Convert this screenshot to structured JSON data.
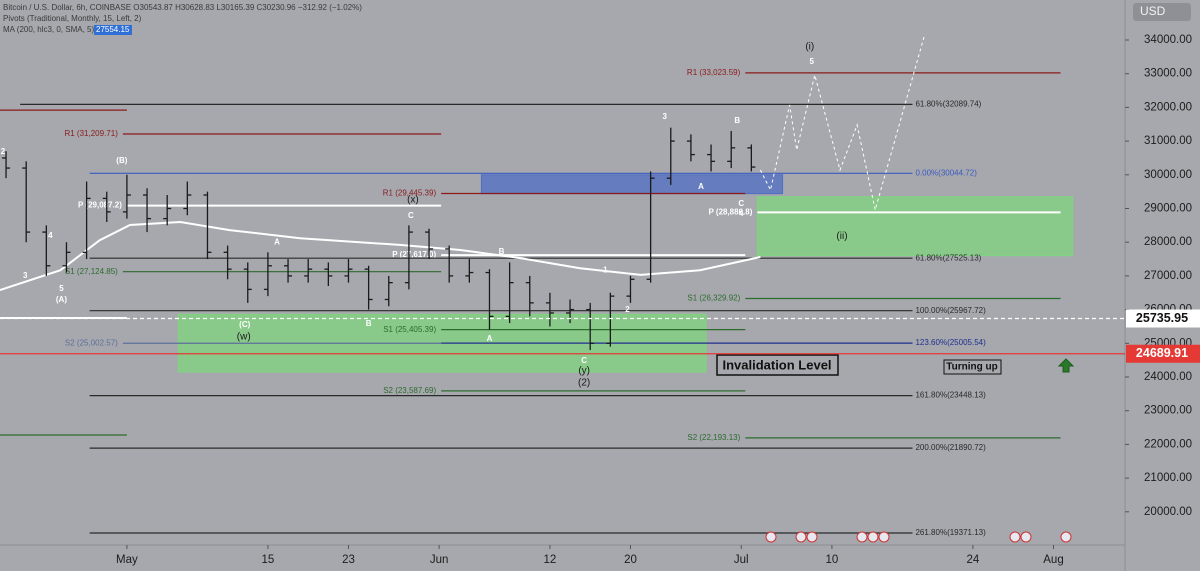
{
  "chart_data": {
    "type": "candlestick",
    "header": [
      "Bitcoin / U.S. Dollar, 6h, COINBASE  O30543.87 H30628.83 L30165.39 C30230.96 −312.92 (−1.02%)",
      "Pivots (Traditional, Monthly, 15, Left, 2)",
      "MA (200, hlc3, 0, SMA, 5)"
    ],
    "ma_value": 27554.15,
    "currency": "USD",
    "texts": [
      "Invalidation Level",
      "Turning up"
    ],
    "xlim": [
      -12.6,
      99.1
    ],
    "xticks": [
      {
        "value": 0,
        "label": "May"
      },
      {
        "value": 14,
        "label": "15"
      },
      {
        "value": 22,
        "label": "23"
      },
      {
        "value": 31,
        "label": "Jun"
      },
      {
        "value": 42,
        "label": "12"
      },
      {
        "value": 50,
        "label": "20"
      },
      {
        "value": 61,
        "label": "Jul"
      },
      {
        "value": 70,
        "label": "10"
      },
      {
        "value": 84,
        "label": "24"
      },
      {
        "value": 92,
        "label": "Aug"
      }
    ],
    "ylim": [
      19015,
      35187
    ],
    "yticks": [
      {
        "value": 20000,
        "label": "20000.00"
      },
      {
        "value": 21000,
        "label": "21000.00"
      },
      {
        "value": 22000,
        "label": "22000.00"
      },
      {
        "value": 23000,
        "label": "23000.00"
      },
      {
        "value": 24000,
        "label": "24000.00"
      },
      {
        "value": 25000,
        "label": "25000.00"
      },
      {
        "value": 26000,
        "label": "26000.00"
      },
      {
        "value": 27000,
        "label": "27000.00"
      },
      {
        "value": 28000,
        "label": "28000.00"
      },
      {
        "value": 29000,
        "label": "29000.00"
      },
      {
        "value": 30000,
        "label": "30000.00"
      },
      {
        "value": 31000,
        "label": "31000.00"
      },
      {
        "value": 32000,
        "label": "32000.00"
      },
      {
        "value": 33000,
        "label": "33000.00"
      },
      {
        "value": 34000,
        "label": "34000.00"
      }
    ],
    "color": "#1a1a1a",
    "x": [
      -12,
      -10,
      -8,
      -6,
      -4,
      -2,
      0,
      2,
      4,
      6,
      8,
      10,
      12,
      14,
      16,
      18,
      20,
      22,
      24,
      26,
      28,
      30,
      32,
      34,
      36,
      38,
      40,
      42,
      44,
      46,
      48,
      50,
      52,
      54,
      56,
      58,
      60,
      62
    ],
    "open": [
      30500,
      30200,
      28300,
      27300,
      27700,
      29300,
      28900,
      29400,
      28700,
      29000,
      29400,
      27700,
      27200,
      26600,
      27300,
      27000,
      27200,
      27000,
      27200,
      26300,
      26800,
      28300,
      27800,
      27000,
      27100,
      25800,
      26800,
      26200,
      25900,
      26000,
      25000,
      26400,
      26900,
      29900,
      31000,
      30600,
      30400,
      30800
    ],
    "high": [
      30700,
      30400,
      28500,
      28000,
      29800,
      29500,
      30000,
      29600,
      29400,
      29800,
      29500,
      27900,
      27400,
      27700,
      27500,
      27500,
      27400,
      27500,
      27300,
      27000,
      28500,
      28400,
      27900,
      27500,
      27200,
      27400,
      27000,
      26500,
      26300,
      26200,
      26500,
      27000,
      30100,
      31400,
      31200,
      30900,
      31300,
      30900
    ],
    "low": [
      29900,
      28000,
      27000,
      27100,
      27500,
      28600,
      28700,
      28300,
      28500,
      28800,
      27500,
      26900,
      26200,
      26400,
      26800,
      26800,
      26700,
      26800,
      26000,
      26100,
      26600,
      27500,
      26800,
      26800,
      25400,
      25600,
      25800,
      25500,
      25600,
      24800,
      24900,
      26200,
      26800,
      29700,
      30400,
      30100,
      30200,
      30100
    ],
    "close": [
      30200,
      28300,
      27300,
      27700,
      29300,
      28900,
      29400,
      28700,
      29000,
      29400,
      27700,
      27200,
      26600,
      27300,
      27000,
      27200,
      27000,
      27200,
      26300,
      26800,
      28300,
      27800,
      27000,
      27100,
      25800,
      26800,
      26200,
      25900,
      26000,
      25000,
      26400,
      26900,
      29900,
      31000,
      30600,
      30400,
      30800,
      30230
    ],
    "ma": {
      "color": "#ffffff",
      "x": [
        -12.6,
        -6.6,
        -2.7,
        0.3,
        5.3,
        10.2,
        17.2,
        27.1,
        33.1,
        39.0,
        45.0,
        51.0,
        56.9,
        62.9
      ],
      "values": [
        26580,
        27170,
        28060,
        28510,
        28600,
        28360,
        28120,
        27920,
        27770,
        27530,
        27230,
        27030,
        27170,
        27560
      ]
    },
    "projection": {
      "color": "#ffffff",
      "x": [
        62.9,
        63.9,
        65.8,
        66.5,
        68.3,
        70.8,
        72.5,
        74.3,
        79.2
      ],
      "values": [
        30140,
        29550,
        32070,
        30740,
        32960,
        30140,
        31480,
        28960,
        34150
      ]
    },
    "zones": [
      {
        "from": 35.2,
        "to": 65.1,
        "low": 29440,
        "high": 30000,
        "color": "#4f6fc4"
      },
      {
        "from": 5.1,
        "to": 57.5,
        "low": 24150,
        "high": 25860,
        "color": "#7fd67f"
      },
      {
        "from": 62.6,
        "to": 93.9,
        "low": 27600,
        "high": 29350,
        "color": "#7fd67f"
      }
    ],
    "levels": [
      {
        "value": 32089.74,
        "label": "61.80%(32089.74)",
        "from": -10.6,
        "to": 78,
        "color": "#2a2a2a"
      },
      {
        "value": 33023.59,
        "label": "R1 (33,023.59)",
        "from": 61.4,
        "to": 92.7,
        "color": "#8b1a1a"
      },
      {
        "value": 31209.71,
        "label": "R1 (31,209.71)",
        "from": -0.4,
        "to": 31.2,
        "color": "#8b1a1a"
      },
      {
        "value": 31920,
        "from": -12.6,
        "to": 0,
        "color": "#8b1a1a"
      },
      {
        "value": 29445.39,
        "label": "R1 (29,445.39)",
        "from": 31.2,
        "to": 61.4,
        "color": "#8b1a1a"
      },
      {
        "value": 30044.72,
        "label": "0.00%(30044.72)",
        "from": -3.7,
        "to": 78,
        "color": "#3b5bbf"
      },
      {
        "value": 29087.2,
        "label": "P (29,087.2)",
        "from": 0,
        "to": 31.2,
        "color": "#ffffff"
      },
      {
        "value": 28886.8,
        "label": "P (28,886.8)",
        "from": 62.6,
        "to": 92.7,
        "color": "#ffffff"
      },
      {
        "value": 27617.0,
        "label": "P (27,617.0)",
        "from": 31.2,
        "to": 61.4,
        "color": "#ffffff"
      },
      {
        "value": 27124.85,
        "label": "S1 (27,124.85)",
        "from": -0.4,
        "to": 31.2,
        "color": "#2e6b2e"
      },
      {
        "value": 27525.13,
        "label": "61.80%(27525.13)",
        "from": -3.7,
        "to": 78,
        "color": "#2a2a2a"
      },
      {
        "value": 26329.92,
        "label": "S1 (26,329.92)",
        "from": 61.4,
        "to": 92.7,
        "color": "#2e6b2e"
      },
      {
        "value": 25967.72,
        "label": "100.00%(25967.72)",
        "from": -3.7,
        "to": 78,
        "color": "#2a2a2a"
      },
      {
        "value": 25750,
        "from": -12.6,
        "to": 0,
        "color": "#ffffff"
      },
      {
        "value": 25405.39,
        "label": "S1 (25,405.39)",
        "from": 31.2,
        "to": 61.4,
        "color": "#2e6b2e"
      },
      {
        "value": 25002.57,
        "label": "S2 (25,002.57)",
        "from": -0.4,
        "to": 31.2,
        "color": "#5d6f9c"
      },
      {
        "value": 25005.54,
        "label": "123.60%(25005.54)",
        "from": 31.2,
        "to": 78,
        "color": "#1f2f8f"
      },
      {
        "value": 23587.69,
        "label": "S2 (23,587.69)",
        "from": 31.2,
        "to": 61.4,
        "color": "#2e6b2e"
      },
      {
        "value": 23448.13,
        "label": "161.80%(23448.13)",
        "from": -3.7,
        "to": 78,
        "color": "#2a2a2a"
      },
      {
        "value": 22280,
        "from": -12.6,
        "to": 0,
        "color": "#2e6b2e"
      },
      {
        "value": 22193.13,
        "label": "S2 (22,193.13)",
        "from": 61.4,
        "to": 92.7,
        "color": "#2e6b2e"
      },
      {
        "value": 21890.72,
        "label": "200.00%(21890.72)",
        "from": -3.7,
        "to": 78,
        "color": "#2a2a2a"
      },
      {
        "value": 19371.13,
        "label": "261.80%(19371.13)",
        "from": -3.7,
        "to": 78,
        "color": "#2a2a2a"
      }
    ],
    "markers": [
      {
        "value": 25735.95,
        "color": "#ffffff"
      },
      {
        "value": 24689.91,
        "color": "#e53935"
      }
    ],
    "annotations": [
      {
        "text": "2",
        "x": -12.3,
        "y": 30680
      },
      {
        "text": "3",
        "x": -10.1,
        "y": 26997
      },
      {
        "text": "4",
        "x": -7.6,
        "y": 28180
      },
      {
        "text": "5",
        "x": -6.5,
        "y": 26610
      },
      {
        "text": "(A)",
        "x": -6.5,
        "y": 26285
      },
      {
        "text": "(B)",
        "x": -0.5,
        "y": 30410
      },
      {
        "text": "(x)",
        "x": 28.4,
        "y": 29250
      },
      {
        "text": "C",
        "x": 28.2,
        "y": 28780
      },
      {
        "text": "A",
        "x": 14.9,
        "y": 28000
      },
      {
        "text": "(C)",
        "x": 11.7,
        "y": 25540
      },
      {
        "text": "(w)",
        "x": 11.6,
        "y": 25190
      },
      {
        "text": "B",
        "x": 24.0,
        "y": 25570
      },
      {
        "text": "B",
        "x": 37.2,
        "y": 27710
      },
      {
        "text": "A",
        "x": 36.0,
        "y": 25130
      },
      {
        "text": "C",
        "x": 45.4,
        "y": 24475
      },
      {
        "text": "(y)",
        "x": 45.4,
        "y": 24180
      },
      {
        "text": "(2)",
        "x": 45.4,
        "y": 23820
      },
      {
        "text": "1",
        "x": 47.5,
        "y": 27170
      },
      {
        "text": "2",
        "x": 49.7,
        "y": 25990
      },
      {
        "text": "3",
        "x": 53.4,
        "y": 31715
      },
      {
        "text": "A",
        "x": 57.0,
        "y": 29640
      },
      {
        "text": "B",
        "x": 60.6,
        "y": 31600
      },
      {
        "text": "C",
        "x": 61.0,
        "y": 29130
      },
      {
        "text": "4",
        "x": 61.0,
        "y": 28840
      },
      {
        "text": "(i)",
        "x": 67.8,
        "y": 33790
      },
      {
        "text": "5",
        "x": 68.0,
        "y": 33350
      },
      {
        "text": "(ii)",
        "x": 71.0,
        "y": 28180
      }
    ]
  }
}
